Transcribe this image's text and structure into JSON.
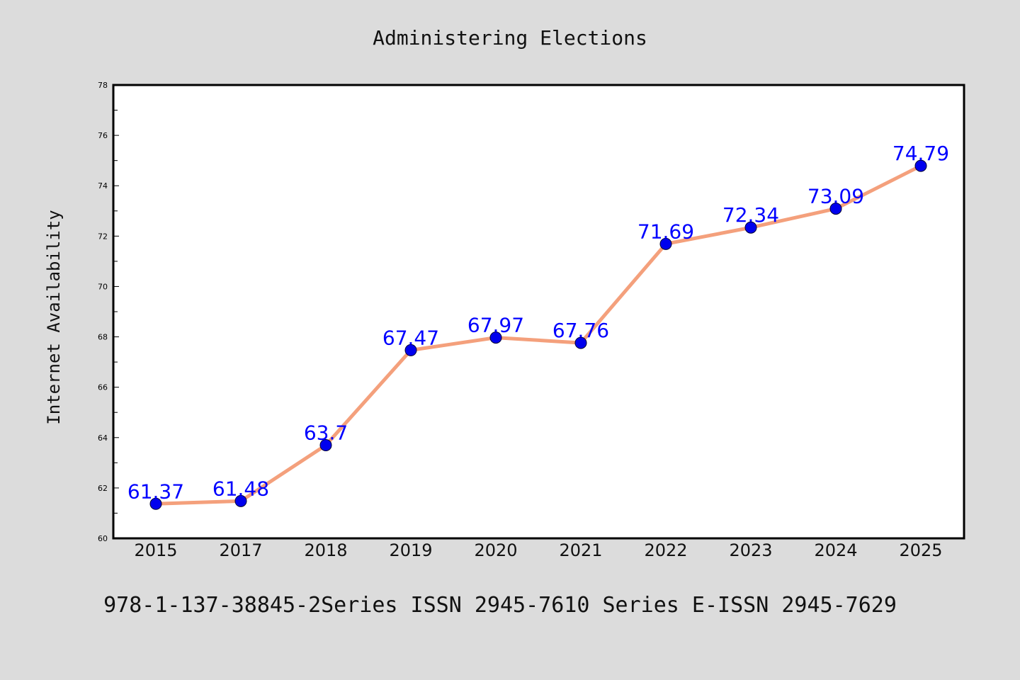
{
  "chart_data": {
    "type": "line",
    "title": "Administering Elections",
    "xlabel": "",
    "ylabel": "Internet Availability",
    "categories": [
      "2015",
      "2017",
      "2018",
      "2019",
      "2020",
      "2021",
      "2022",
      "2023",
      "2024",
      "2025"
    ],
    "series": [
      {
        "values": [
          61.37,
          61.48,
          63.7,
          67.47,
          67.97,
          67.76,
          71.69,
          72.34,
          73.09,
          74.79
        ],
        "data_labels": [
          "61.37",
          "61.48",
          "63.7",
          "67.47",
          "67.97",
          "67.76",
          "71.69",
          "72.34",
          "73.09",
          "74.79"
        ],
        "line_color": "#f4a07c",
        "marker_color": "#0000ee",
        "label_color": "#0000ff"
      }
    ],
    "ylim": [
      60,
      78
    ],
    "yticks": [
      "60",
      "62",
      "64",
      "66",
      "68",
      "70",
      "72",
      "74",
      "76",
      "78"
    ],
    "grid": false,
    "legend": "none",
    "footnote": "978-1-137-38845-2Series ISSN 2945-7610 Series E-ISSN 2945-7629"
  },
  "colors": {
    "background": "#dcdcdc",
    "plot_background": "#ffffff",
    "axis": "#000000"
  }
}
